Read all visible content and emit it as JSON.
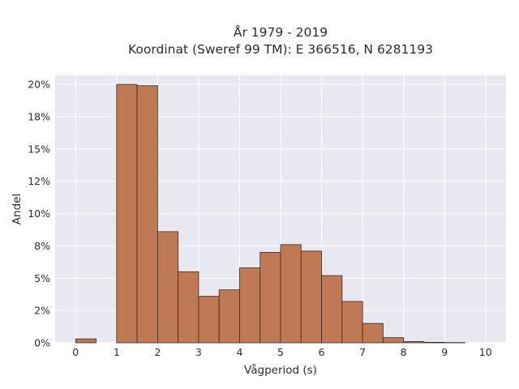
{
  "chart_data": {
    "type": "bar",
    "title_line1": "År 1979 - 2019",
    "title_line2": "Koordinat (Sweref 99 TM): E 366516, N 6281193",
    "xlabel": "Vågperiod (s)",
    "ylabel": "Andel",
    "xlim": [
      -0.5,
      10.5
    ],
    "ylim": [
      0,
      0.207
    ],
    "x_ticks": [
      0,
      1,
      2,
      3,
      4,
      5,
      6,
      7,
      8,
      9,
      10
    ],
    "x_tick_labels": [
      "0",
      "1",
      "2",
      "3",
      "4",
      "5",
      "6",
      "7",
      "8",
      "9",
      "10"
    ],
    "y_ticks": [
      0,
      0.025,
      0.05,
      0.075,
      0.1,
      0.125,
      0.15,
      0.175,
      0.2
    ],
    "y_tick_labels": [
      "0%",
      "2%",
      "5%",
      "8%",
      "10%",
      "12%",
      "15%",
      "18%",
      "20%"
    ],
    "bin_width": 0.5,
    "bins": [
      {
        "x0": 0.0,
        "value": 0.003
      },
      {
        "x0": 1.0,
        "value": 0.2
      },
      {
        "x0": 1.5,
        "value": 0.199
      },
      {
        "x0": 2.0,
        "value": 0.086
      },
      {
        "x0": 2.5,
        "value": 0.055
      },
      {
        "x0": 3.0,
        "value": 0.036
      },
      {
        "x0": 3.5,
        "value": 0.041
      },
      {
        "x0": 4.0,
        "value": 0.058
      },
      {
        "x0": 4.5,
        "value": 0.07
      },
      {
        "x0": 5.0,
        "value": 0.076
      },
      {
        "x0": 5.5,
        "value": 0.071
      },
      {
        "x0": 6.0,
        "value": 0.052
      },
      {
        "x0": 6.5,
        "value": 0.032
      },
      {
        "x0": 7.0,
        "value": 0.015
      },
      {
        "x0": 7.5,
        "value": 0.004
      },
      {
        "x0": 8.0,
        "value": 0.001
      },
      {
        "x0": 8.5,
        "value": 0.0004
      },
      {
        "x0": 9.0,
        "value": 0.0002
      }
    ],
    "grid": true,
    "colors": {
      "plot_background": "#e8e8f1",
      "bar_fill": "#bf7a55",
      "bar_edge": "#3a2a22",
      "grid": "#ffffff"
    }
  }
}
